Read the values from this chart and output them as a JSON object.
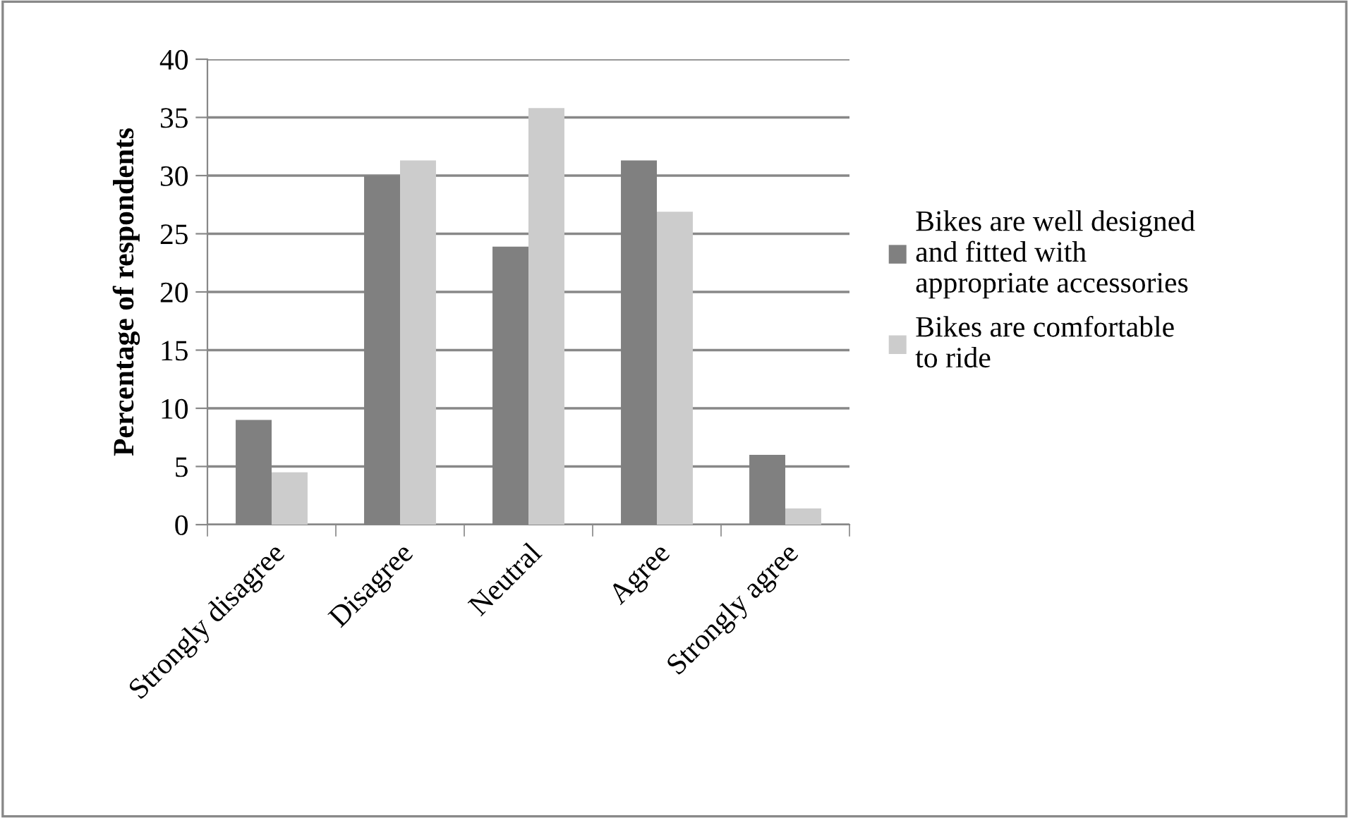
{
  "chart_data": {
    "type": "bar",
    "ylabel": "Percentage of respondents",
    "categories": [
      "Strongly disagree",
      "Disagree",
      "Neutral",
      "Agree",
      "Strongly agree"
    ],
    "series": [
      {
        "name": "Bikes are well designed and fitted with appropriate accessories",
        "color": "#808080",
        "values": [
          9,
          30,
          23.9,
          31.3,
          6
        ]
      },
      {
        "name": "Bikes are comfortable to ride",
        "color": "#cccccc",
        "values": [
          4.5,
          31.3,
          35.8,
          26.9,
          1.4
        ]
      }
    ],
    "ylim": [
      0,
      40
    ],
    "yticks": [
      0,
      5,
      10,
      15,
      20,
      25,
      30,
      35,
      40
    ],
    "grid": "y",
    "legend": "right"
  }
}
